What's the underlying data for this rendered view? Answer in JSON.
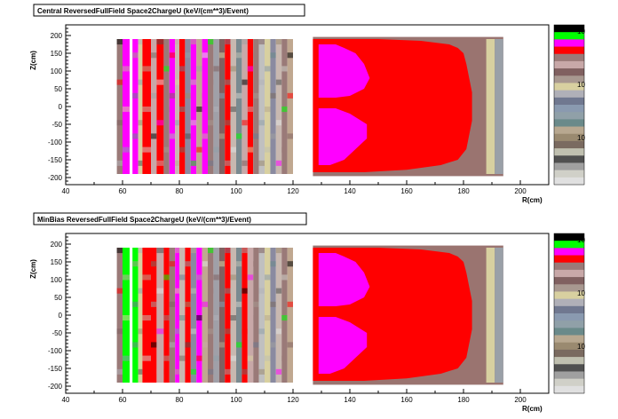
{
  "chart_data": [
    {
      "type": "heatmap",
      "title": "Central ReversedFullField Space2ChargeU (keV/(cm**3)/Event)",
      "xlabel": "R(cm)",
      "ylabel": "Z(cm)",
      "xlim": [
        40,
        210
      ],
      "ylim": [
        -220,
        230
      ],
      "x_ticks": [
        "40",
        "60",
        "80",
        "100",
        "120",
        "140",
        "160",
        "180",
        "200"
      ],
      "y_ticks": [
        "200",
        "150",
        "100",
        "50",
        "0",
        "-50",
        "-100",
        "-150",
        "-200"
      ],
      "x_tick_values": [
        40,
        60,
        80,
        100,
        120,
        140,
        160,
        180,
        200
      ],
      "y_tick_values": [
        200,
        150,
        100,
        50,
        0,
        -50,
        -100,
        -150,
        -200
      ],
      "palette_labels": [
        "10",
        "10",
        "10"
      ],
      "inner_rings": [
        {
          "r0": 58,
          "r1": 60,
          "c": "#9a7a78"
        },
        {
          "r0": 60,
          "r1": 62.5,
          "c": "#ff00ff"
        },
        {
          "r0": 63.5,
          "r1": 65.5,
          "c": "#ff00ff"
        },
        {
          "r0": 65.5,
          "r1": 67,
          "c": "#d8d0a0"
        },
        {
          "r0": 67,
          "r1": 70,
          "c": "#ff0000"
        },
        {
          "r0": 70,
          "r1": 72,
          "c": "#c8a8a8"
        },
        {
          "r0": 72,
          "r1": 74.5,
          "c": "#ff0000"
        },
        {
          "r0": 74.5,
          "r1": 76.5,
          "c": "#9a7a78"
        },
        {
          "r0": 76.5,
          "r1": 78.5,
          "c": "#ff00ff"
        },
        {
          "r0": 78.5,
          "r1": 80,
          "c": "#c8b8b0"
        },
        {
          "r0": 80,
          "r1": 82,
          "c": "#ff0000"
        },
        {
          "r0": 82,
          "r1": 84,
          "c": "#8a8aa0"
        },
        {
          "r0": 84,
          "r1": 86,
          "c": "#ff00ff"
        },
        {
          "r0": 86,
          "r1": 88,
          "c": "#c0a890"
        },
        {
          "r0": 88,
          "r1": 90,
          "c": "#ff00ff"
        },
        {
          "r0": 90,
          "r1": 92,
          "c": "#9a7a78"
        },
        {
          "r0": 92,
          "r1": 94,
          "c": "#a0a0a8"
        },
        {
          "r0": 94,
          "r1": 96,
          "c": "#806060"
        },
        {
          "r0": 96,
          "r1": 98,
          "c": "#ff0000"
        },
        {
          "r0": 98,
          "r1": 100,
          "c": "#c8b8b0"
        },
        {
          "r0": 100,
          "r1": 102,
          "c": "#7a8a90"
        },
        {
          "r0": 102,
          "r1": 104,
          "c": "#c8a8a8"
        },
        {
          "r0": 104,
          "r1": 106,
          "c": "#ff0000"
        },
        {
          "r0": 106,
          "r1": 108,
          "c": "#9a7a78"
        },
        {
          "r0": 108,
          "r1": 110,
          "c": "#c0c0c0"
        },
        {
          "r0": 110,
          "r1": 112,
          "c": "#d8d0a0"
        },
        {
          "r0": 112,
          "r1": 114,
          "c": "#8a8aa0"
        },
        {
          "r0": 114,
          "r1": 116,
          "c": "#c8b8b0"
        },
        {
          "r0": 116,
          "r1": 118,
          "c": "#9a7a78"
        },
        {
          "r0": 118,
          "r1": 120,
          "c": "#c0a890"
        }
      ],
      "outer_region": {
        "r0": 127,
        "r1": 194,
        "z0": -196,
        "z1": 196
      }
    },
    {
      "type": "heatmap",
      "title": "MinBias ReversedFullField Space2ChargeU (keV/(cm**3)/Event)",
      "xlabel": "R(cm)",
      "ylabel": "Z(cm)",
      "xlim": [
        40,
        210
      ],
      "ylim": [
        -220,
        230
      ],
      "x_ticks": [
        "40",
        "60",
        "80",
        "100",
        "120",
        "140",
        "160",
        "180",
        "200"
      ],
      "y_ticks": [
        "200",
        "150",
        "100",
        "50",
        "0",
        "-50",
        "-100",
        "-150",
        "-200"
      ],
      "x_tick_values": [
        40,
        60,
        80,
        100,
        120,
        140,
        160,
        180,
        200
      ],
      "y_tick_values": [
        200,
        150,
        100,
        50,
        0,
        -50,
        -100,
        -150,
        -200
      ],
      "palette_labels": [
        "10",
        "10",
        "10"
      ],
      "inner_rings": [
        {
          "r0": 58,
          "r1": 60,
          "c": "#9a7a78"
        },
        {
          "r0": 60,
          "r1": 62.5,
          "c": "#00ff00"
        },
        {
          "r0": 63.5,
          "r1": 65.5,
          "c": "#00ff00"
        },
        {
          "r0": 65.5,
          "r1": 67,
          "c": "#d8d0a0"
        },
        {
          "r0": 67,
          "r1": 70,
          "c": "#ff0000"
        },
        {
          "r0": 70,
          "r1": 72,
          "c": "#ff0000"
        },
        {
          "r0": 72,
          "r1": 74.5,
          "c": "#c8a8a8"
        },
        {
          "r0": 74.5,
          "r1": 76.5,
          "c": "#ff0000"
        },
        {
          "r0": 76.5,
          "r1": 78.5,
          "c": "#9a7a78"
        },
        {
          "r0": 78.5,
          "r1": 80,
          "c": "#ff00ff"
        },
        {
          "r0": 80,
          "r1": 82,
          "c": "#c8b8b0"
        },
        {
          "r0": 82,
          "r1": 84,
          "c": "#ff0000"
        },
        {
          "r0": 84,
          "r1": 86,
          "c": "#8a8aa0"
        },
        {
          "r0": 86,
          "r1": 88,
          "c": "#ff00ff"
        },
        {
          "r0": 88,
          "r1": 90,
          "c": "#c0a890"
        },
        {
          "r0": 90,
          "r1": 92,
          "c": "#9a7a78"
        },
        {
          "r0": 92,
          "r1": 94,
          "c": "#a0a0a8"
        },
        {
          "r0": 94,
          "r1": 96,
          "c": "#806060"
        },
        {
          "r0": 96,
          "r1": 98,
          "c": "#ff0000"
        },
        {
          "r0": 98,
          "r1": 100,
          "c": "#c8b8b0"
        },
        {
          "r0": 100,
          "r1": 102,
          "c": "#7a8a90"
        },
        {
          "r0": 102,
          "r1": 104,
          "c": "#ff0000"
        },
        {
          "r0": 104,
          "r1": 106,
          "c": "#c8a8a8"
        },
        {
          "r0": 106,
          "r1": 108,
          "c": "#9a7a78"
        },
        {
          "r0": 108,
          "r1": 110,
          "c": "#c0c0c0"
        },
        {
          "r0": 110,
          "r1": 112,
          "c": "#d8d0a0"
        },
        {
          "r0": 112,
          "r1": 114,
          "c": "#8a8aa0"
        },
        {
          "r0": 114,
          "r1": 116,
          "c": "#c8b8b0"
        },
        {
          "r0": 116,
          "r1": 118,
          "c": "#9a7a78"
        },
        {
          "r0": 118,
          "r1": 120,
          "c": "#c0a890"
        }
      ],
      "outer_region": {
        "r0": 127,
        "r1": 194,
        "z0": -196,
        "z1": 196
      }
    }
  ],
  "colors": {
    "red": "#ff0000",
    "magenta": "#ff00ff",
    "green": "#00ff00",
    "mauve": "#9a7470",
    "palette": [
      "#000000",
      "#00ff00",
      "#ff00ff",
      "#ff0000",
      "#9a7a78",
      "#c8a8a8",
      "#806060",
      "#a89890",
      "#d8d0a0",
      "#b0b0b8",
      "#707890",
      "#8a9ab0",
      "#90a0a8",
      "#6a8a8a",
      "#b8a890",
      "#9a8a70",
      "#7a6a60",
      "#c0c0b0",
      "#505050",
      "#a0a0a0",
      "#d0d0c8",
      "#e0e0e0"
    ]
  }
}
